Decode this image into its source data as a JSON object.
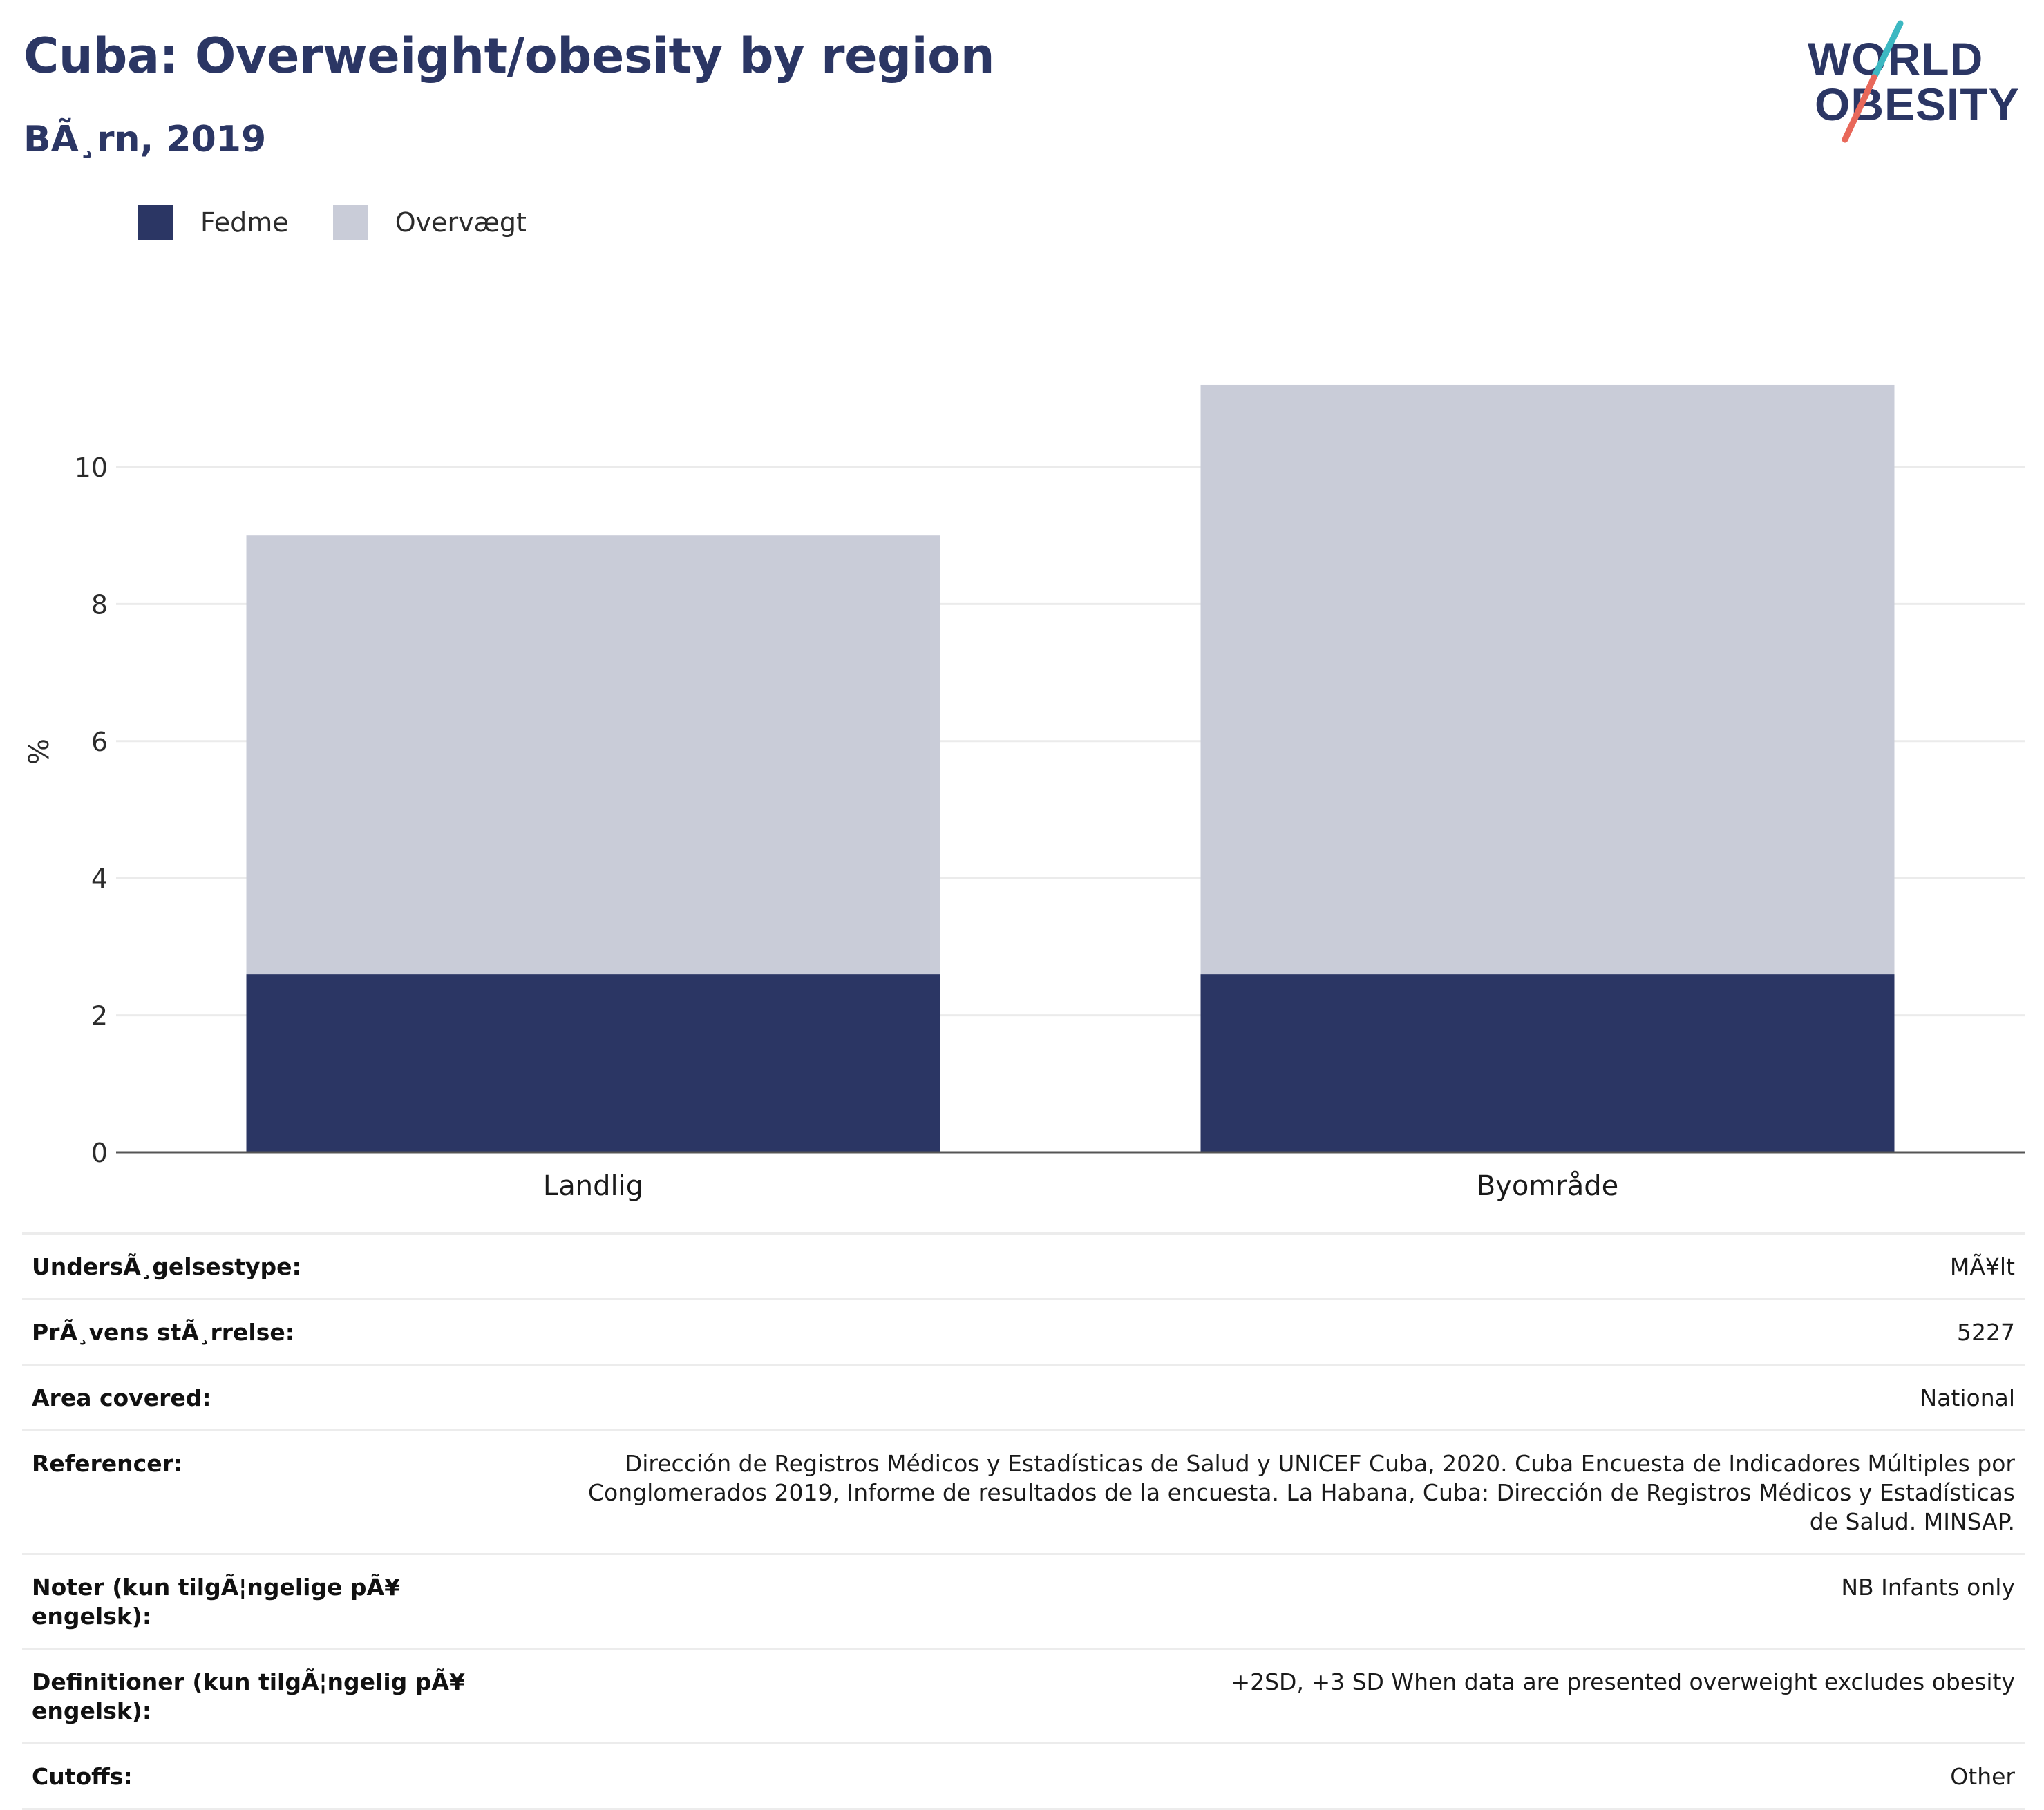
{
  "header": {
    "title": "Cuba: Overweight/obesity by region",
    "subtitle": "BÃ¸rn, 2019"
  },
  "logo": {
    "line1": "WORLD",
    "line2": "OBESITY",
    "colors": {
      "text": "#2b3664",
      "slash_top": "#3cb8c2",
      "slash_bottom": "#e8685a"
    }
  },
  "legend": {
    "items": [
      {
        "label": "Fedme",
        "color": "#2b3664"
      },
      {
        "label": "Overvægt",
        "color": "#c9ccd8"
      }
    ]
  },
  "chart_data": {
    "type": "bar",
    "stacked": true,
    "categories": [
      "Landlig",
      "Byområde"
    ],
    "series": [
      {
        "name": "Fedme",
        "color": "#2b3664",
        "values": [
          2.6,
          2.6
        ]
      },
      {
        "name": "Overvægt",
        "color": "#c9ccd8",
        "values": [
          6.4,
          8.6
        ]
      }
    ],
    "ylabel": "%",
    "ylim": [
      0,
      12
    ],
    "yticks": [
      0,
      2,
      4,
      6,
      8,
      10
    ],
    "grid": true,
    "legend_position": "top-left"
  },
  "info": {
    "rows": [
      {
        "label": "UndersÃ¸gelsestype:",
        "value": "MÃ¥lt"
      },
      {
        "label": "PrÃ¸vens stÃ¸rrelse:",
        "value": "5227"
      },
      {
        "label": "Area covered:",
        "value": "National"
      },
      {
        "label": "Referencer:",
        "value": "Dirección de Registros Médicos y Estadísticas de Salud y UNICEF Cuba, 2020. Cuba Encuesta de Indicadores Múltiples por Conglomerados 2019, Informe de resultados de la encuesta. La Habana, Cuba: Dirección de Registros Médicos y Estadísticas de Salud. MINSAP."
      },
      {
        "label": "Noter (kun tilgÃ¦ngelige pÃ¥ engelsk):",
        "value": "NB Infants only"
      },
      {
        "label": "Definitioner (kun tilgÃ¦ngelig pÃ¥ engelsk):",
        "value": "+2SD, +3 SD When data are presented overweight excludes obesity"
      },
      {
        "label": "Cutoffs:",
        "value": "Other"
      }
    ]
  }
}
